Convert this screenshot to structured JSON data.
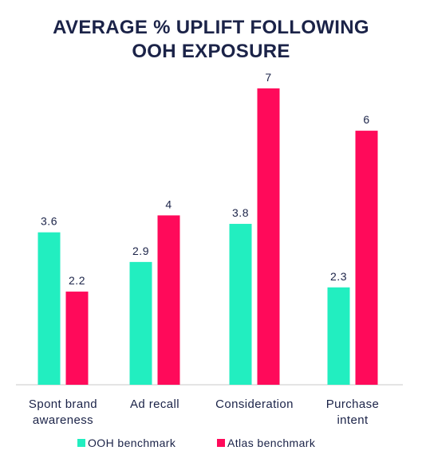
{
  "chart_data": {
    "type": "bar",
    "title_lines": [
      "AVERAGE % UPLIFT FOLLOWING",
      "OOH EXPOSURE"
    ],
    "categories": [
      [
        "Spont brand",
        "awareness"
      ],
      [
        "Ad recall"
      ],
      [
        "Consideration"
      ],
      [
        "Purchase",
        "intent"
      ]
    ],
    "series": [
      {
        "name": "OOH benchmark",
        "color": "#22eec0",
        "values": [
          3.6,
          2.9,
          3.8,
          2.3
        ]
      },
      {
        "name": "Atlas benchmark",
        "color": "#ff0a5a",
        "values": [
          2.2,
          4,
          7,
          6
        ]
      }
    ],
    "ylim": [
      0,
      7.3
    ],
    "grid": false,
    "legend_position": "bottom",
    "axis_color": "#c8c8c8"
  }
}
